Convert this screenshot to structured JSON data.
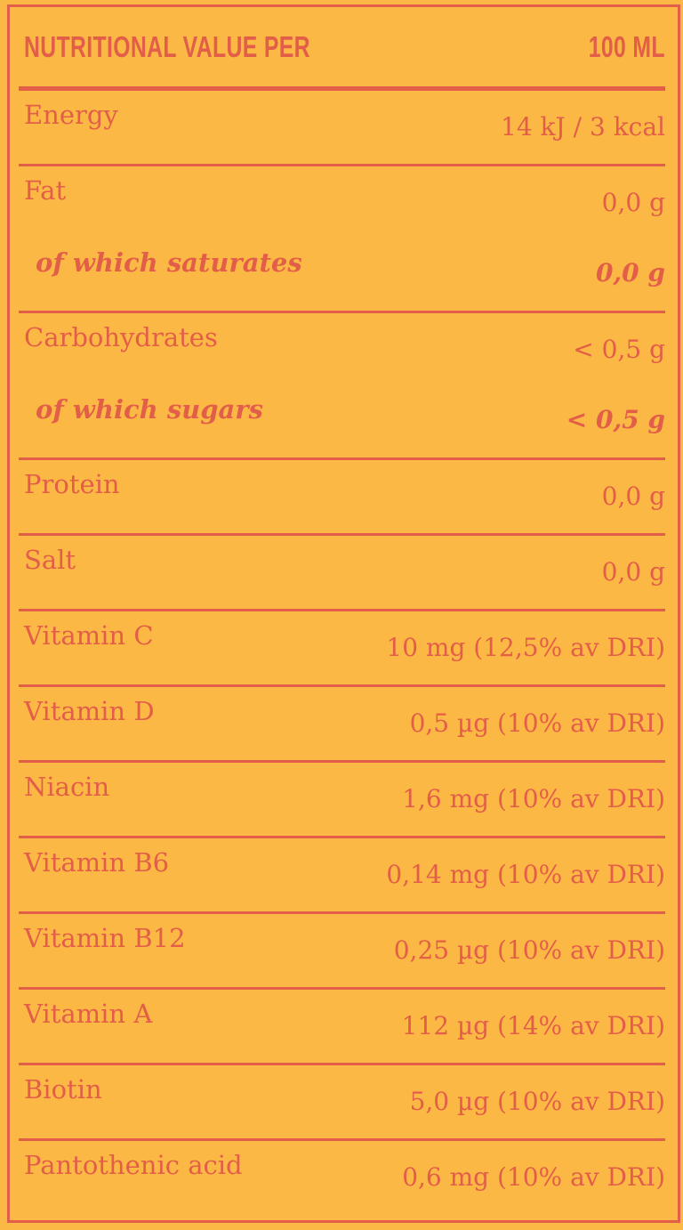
{
  "label_meta": {
    "kind": "nutrition-facts-label"
  },
  "colors": {
    "background": "#FCB845",
    "accent": "#E25E48"
  },
  "header": {
    "title": "NUTRITIONAL VALUE PER",
    "unit": "100 ML"
  },
  "table": {
    "rows": [
      {
        "label": "Energy",
        "value": "14 kJ / 3 kcal"
      },
      {
        "label": "Fat",
        "value": "0,0 g"
      },
      {
        "label": "of which saturates",
        "value": "0,0 g"
      },
      {
        "label": "Carbohydrates",
        "value": "< 0,5 g"
      },
      {
        "label": "of which sugars",
        "value": "< 0,5 g"
      },
      {
        "label": "Protein",
        "value": "0,0 g"
      },
      {
        "label": "Salt",
        "value": "0,0 g"
      },
      {
        "label": "Vitamin C",
        "value": "10 mg (12,5% av DRI)"
      },
      {
        "label": "Vitamin D",
        "value": "0,5 µg (10% av DRI)"
      },
      {
        "label": "Niacin",
        "value": "1,6 mg (10% av DRI)"
      },
      {
        "label": "Vitamin B6",
        "value": "0,14 mg (10% av DRI)"
      },
      {
        "label": "Vitamin B12",
        "value": "0,25 µg (10% av DRI)"
      },
      {
        "label": "Vitamin A",
        "value": "112 µg (14% av DRI)"
      },
      {
        "label": "Biotin",
        "value": "5,0 µg (10% av DRI)"
      },
      {
        "label": "Pantothenic acid",
        "value": "0,6 mg (10% av DRI)"
      }
    ]
  }
}
